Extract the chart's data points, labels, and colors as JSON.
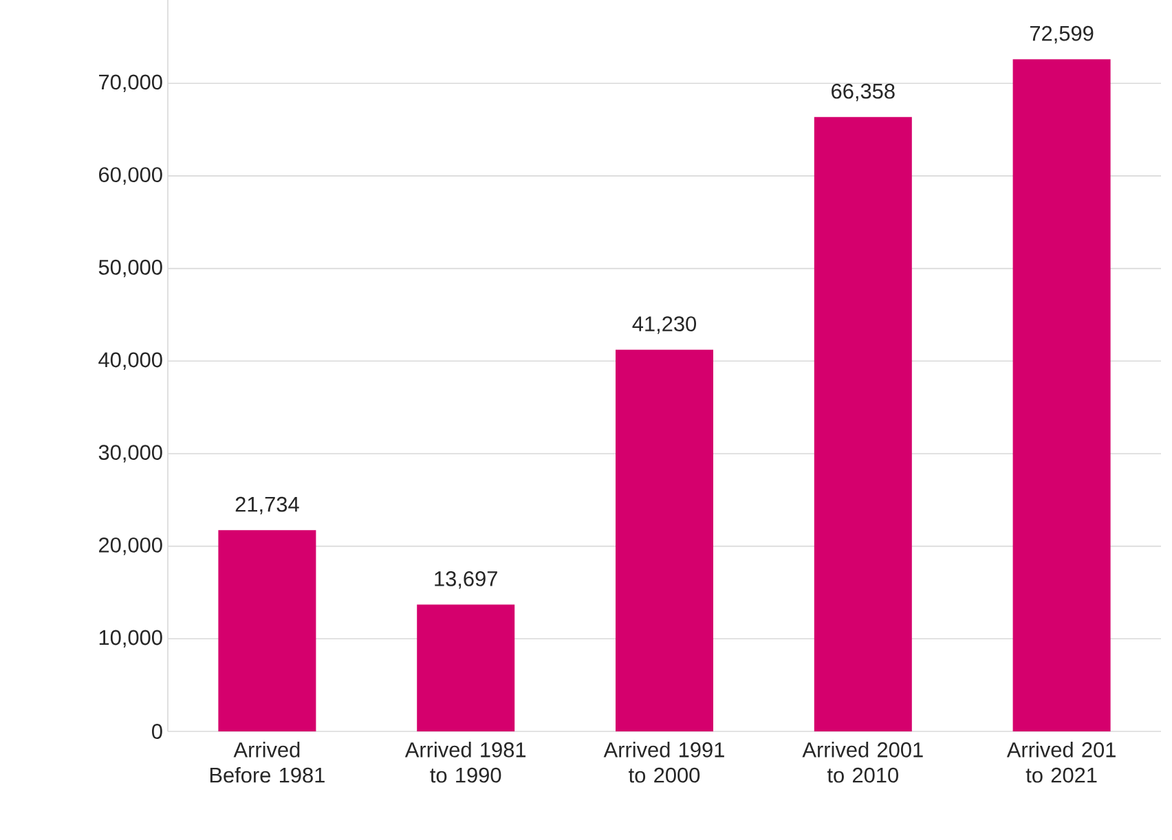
{
  "chart_data": {
    "type": "bar",
    "categories": [
      "Arrived Before 1981",
      "Arrived 1981 to 1990",
      "Arrived 1991 to 2000",
      "Arrived 2001 to 2010",
      "Arrived 201 to 2021"
    ],
    "values": [
      21734,
      13697,
      41230,
      66358,
      72599
    ],
    "value_labels": [
      "21,734",
      "13,697",
      "41,230",
      "66,358",
      "72,599"
    ],
    "color": "#d5006d",
    "yticks": [
      {
        "value": 0,
        "label": "0"
      },
      {
        "value": 10000,
        "label": "10,000"
      },
      {
        "value": 20000,
        "label": "20,000"
      },
      {
        "value": 30000,
        "label": "30,000"
      },
      {
        "value": 40000,
        "label": "40,000"
      },
      {
        "value": 50000,
        "label": "50,000"
      },
      {
        "value": 60000,
        "label": "60,000"
      },
      {
        "value": 70000,
        "label": "70,000"
      }
    ],
    "ylim": [
      0,
      79000
    ],
    "grid": "y"
  }
}
